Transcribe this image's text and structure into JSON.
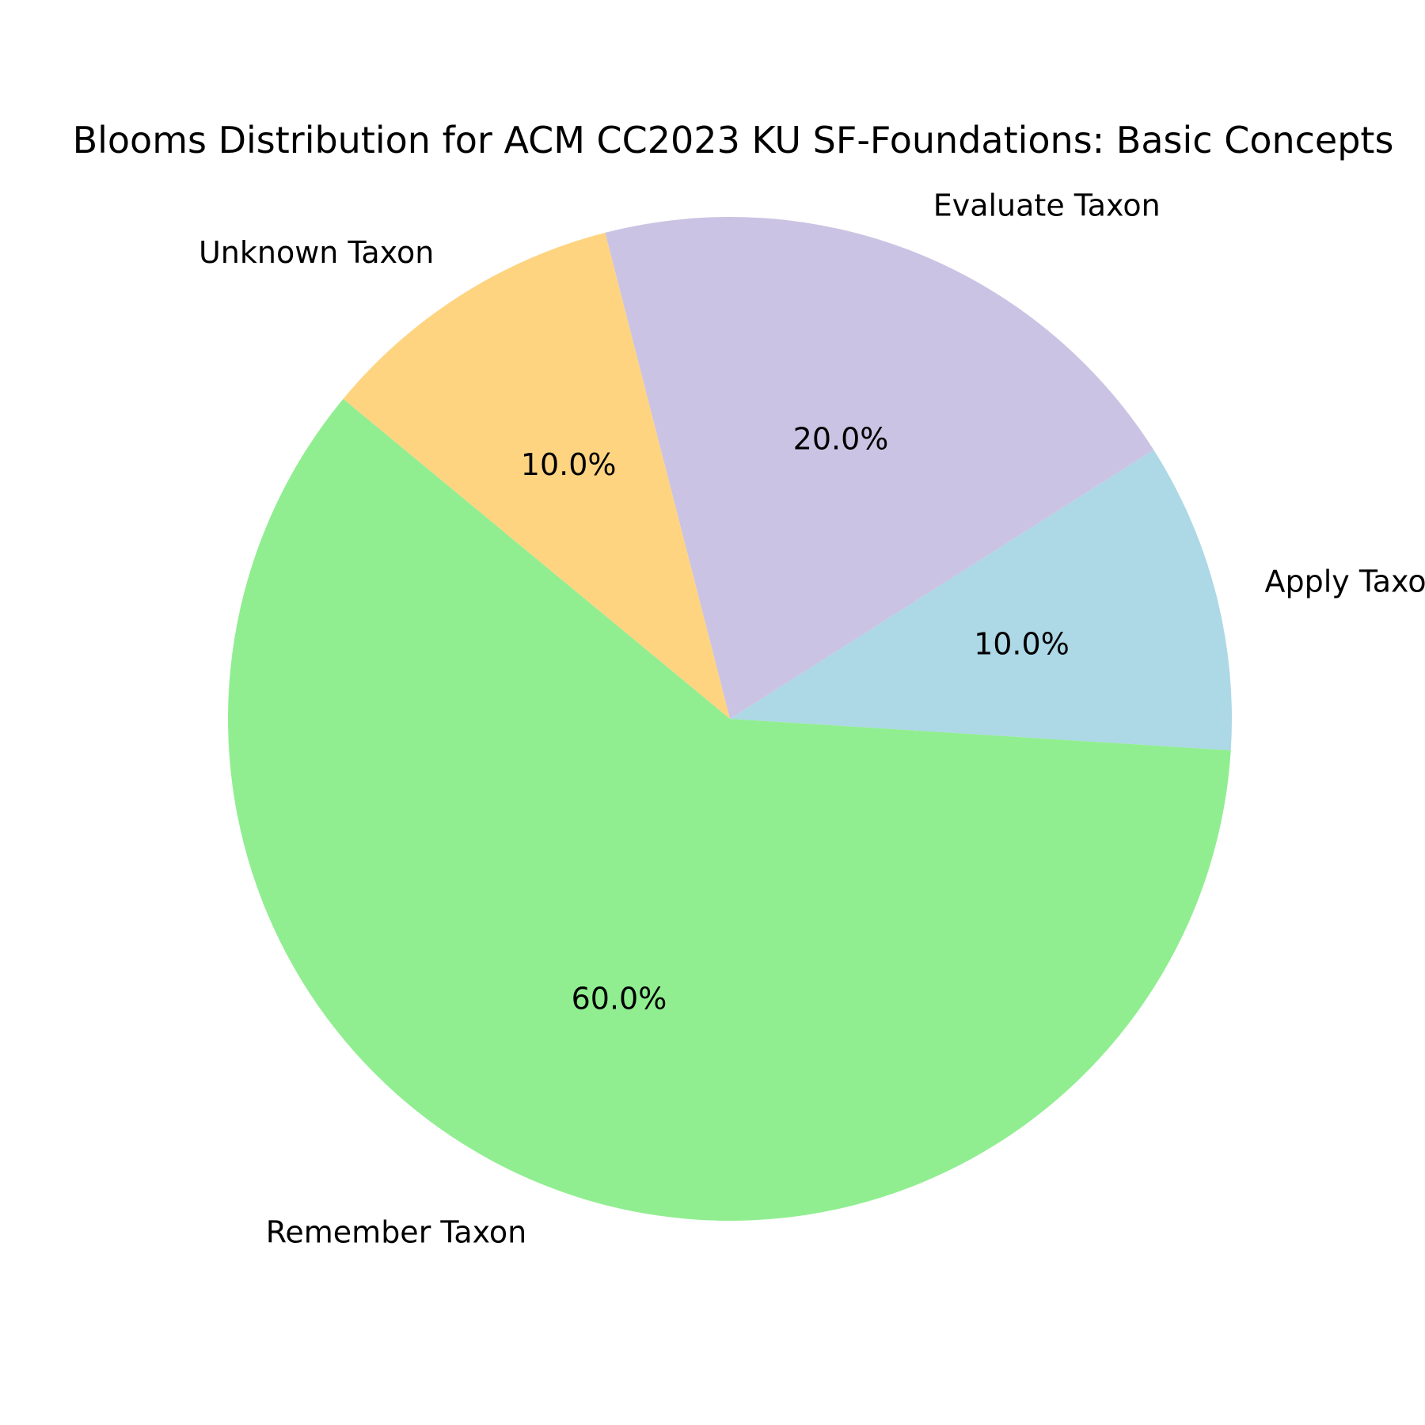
{
  "chart_data": {
    "type": "pie",
    "title": "Blooms Distribution for ACM CC2023 KU SF-Foundations: Basic Concepts",
    "start_angle_deg": -3.6,
    "direction": "counterclockwise",
    "slices": [
      {
        "label": "Apply Taxon",
        "value": 10.0,
        "pct_label": "10.0%",
        "color": "#add8e6"
      },
      {
        "label": "Evaluate Taxon",
        "value": 20.0,
        "pct_label": "20.0%",
        "color": "#cbc3e3"
      },
      {
        "label": "Unknown Taxon",
        "value": 10.0,
        "pct_label": "10.0%",
        "color": "#fed481"
      },
      {
        "label": "Remember Taxon",
        "value": 60.0,
        "pct_label": "60.0%",
        "color": "#90ee90"
      }
    ]
  }
}
